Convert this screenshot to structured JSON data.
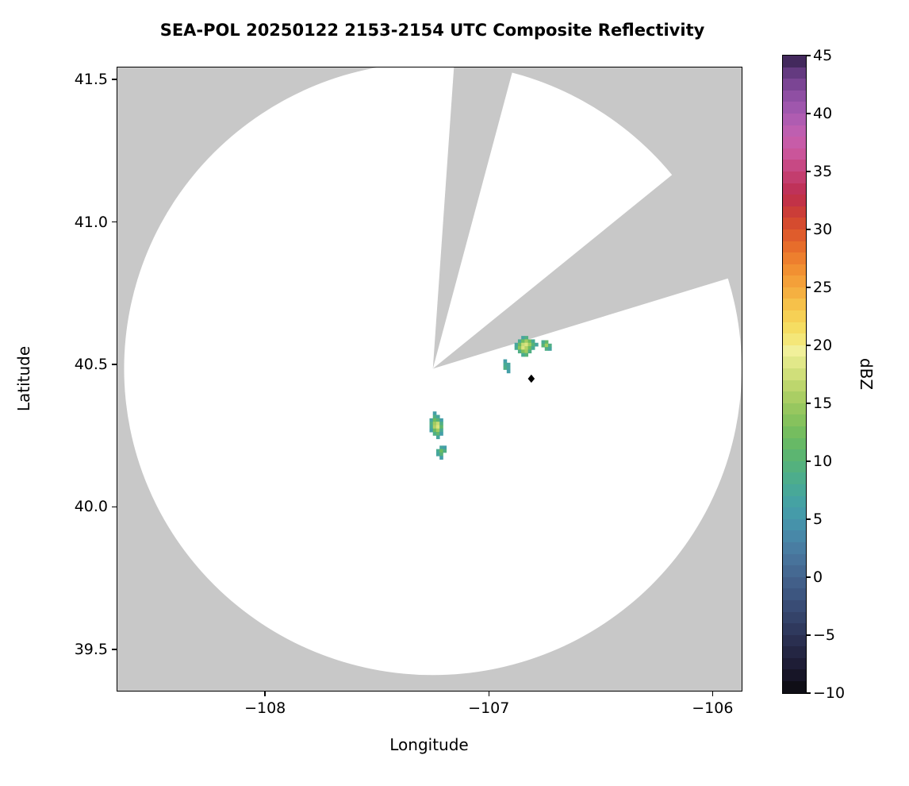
{
  "chart_data": {
    "type": "heatmap",
    "title": "SEA-POL 20250122 2153-2154 UTC Composite Reflectivity",
    "xlabel": "Longitude",
    "ylabel": "Latitude",
    "xlim": [
      -108.66,
      -105.87
    ],
    "ylim": [
      39.355,
      41.542
    ],
    "grid": false,
    "x_ticks": [
      -108,
      -107,
      -106
    ],
    "x_tick_labels": [
      "−108",
      "−107",
      "−106"
    ],
    "y_ticks": [
      41.5,
      41.0,
      40.5,
      40.0,
      39.5
    ],
    "y_tick_labels": [
      "41.5",
      "41.0",
      "40.5",
      "40.0",
      "39.5"
    ],
    "colors": {
      "outside_coverage": "#c8c8c8",
      "coverage": "#ffffff",
      "frame": "#000000",
      "figure_background": "#ffffff"
    },
    "radar": {
      "center_lon": -107.25,
      "center_lat": 40.485,
      "radius_lon_deg": 1.38,
      "radius_lat_deg": 1.075,
      "blocked_sectors_az_deg": [
        [
          4,
          15
        ],
        [
          51,
          73
        ]
      ]
    },
    "site_marker": {
      "lon": -106.81,
      "lat": 40.45,
      "shape": "diamond",
      "color": "#000000"
    },
    "colorbar": {
      "label": "dBZ",
      "min": -10,
      "max": 45,
      "step": 1,
      "ticks": [
        45,
        40,
        35,
        30,
        25,
        20,
        15,
        10,
        5,
        0,
        -5,
        -10
      ],
      "tick_labels": [
        "45",
        "40",
        "35",
        "30",
        "25",
        "20",
        "15",
        "10",
        "5",
        "0",
        "−5",
        "−10"
      ],
      "stops": [
        [
          -10,
          "#0b0b0d"
        ],
        [
          -8,
          "#1b1830"
        ],
        [
          -6,
          "#272a49"
        ],
        [
          -4,
          "#323e63"
        ],
        [
          -2,
          "#3b517b"
        ],
        [
          0,
          "#44648e"
        ],
        [
          2,
          "#49789f"
        ],
        [
          4,
          "#478dab"
        ],
        [
          6,
          "#449fa8"
        ],
        [
          8,
          "#49ab93"
        ],
        [
          10,
          "#57b377"
        ],
        [
          12,
          "#6cbb60"
        ],
        [
          14,
          "#8ec45c"
        ],
        [
          16,
          "#b3d167"
        ],
        [
          18,
          "#d9e480"
        ],
        [
          19.5,
          "#f1f09a"
        ],
        [
          21,
          "#f5e368"
        ],
        [
          23,
          "#f6c94f"
        ],
        [
          25,
          "#f5a83c"
        ],
        [
          27,
          "#f0882f"
        ],
        [
          29,
          "#e4642a"
        ],
        [
          31,
          "#d04230"
        ],
        [
          33,
          "#bd2c4e"
        ],
        [
          35,
          "#c54379"
        ],
        [
          36.5,
          "#ca559a"
        ],
        [
          38,
          "#c560af"
        ],
        [
          40,
          "#a75bb2"
        ],
        [
          42,
          "#874b9e"
        ],
        [
          43.5,
          "#643a80"
        ],
        [
          45,
          "#33204b"
        ]
      ]
    },
    "echo_clusters": [
      {
        "name": "northeast-main",
        "origin_lon": -106.885,
        "origin_lat": 40.6,
        "cell_lon": 0.015,
        "cell_lat": 0.012,
        "rows": [
          [
            null,
            null,
            7,
            9,
            null,
            null,
            null,
            null
          ],
          [
            null,
            8,
            12,
            15,
            12,
            8,
            null,
            null
          ],
          [
            7,
            12,
            17,
            18,
            15,
            10,
            7,
            null
          ],
          [
            8,
            14,
            18,
            16,
            12,
            8,
            null,
            null
          ],
          [
            null,
            9,
            13,
            15,
            9,
            null,
            null,
            null
          ],
          [
            null,
            null,
            8,
            10,
            null,
            null,
            null,
            null
          ]
        ]
      },
      {
        "name": "northeast-small",
        "origin_lon": -106.765,
        "origin_lat": 40.585,
        "cell_lon": 0.015,
        "cell_lat": 0.012,
        "rows": [
          [
            8,
            11,
            null
          ],
          [
            10,
            15,
            9
          ],
          [
            null,
            9,
            7
          ]
        ]
      },
      {
        "name": "center-streak",
        "origin_lon": -106.935,
        "origin_lat": 40.518,
        "cell_lon": 0.015,
        "cell_lat": 0.012,
        "rows": [
          [
            6,
            null
          ],
          [
            8,
            7
          ],
          [
            9,
            7
          ],
          [
            null,
            6
          ]
        ]
      },
      {
        "name": "southwest-main",
        "origin_lon": -107.265,
        "origin_lat": 40.335,
        "cell_lon": 0.015,
        "cell_lat": 0.012,
        "rows": [
          [
            null,
            6,
            null,
            null
          ],
          [
            null,
            9,
            7,
            null
          ],
          [
            7,
            12,
            10,
            6
          ],
          [
            9,
            15,
            17,
            9
          ],
          [
            8,
            16,
            18,
            11
          ],
          [
            6,
            12,
            15,
            8
          ],
          [
            null,
            9,
            11,
            6
          ],
          [
            null,
            null,
            7,
            null
          ]
        ]
      },
      {
        "name": "southwest-small",
        "origin_lon": -107.235,
        "origin_lat": 40.215,
        "cell_lon": 0.015,
        "cell_lat": 0.012,
        "rows": [
          [
            null,
            7,
            6
          ],
          [
            8,
            12,
            9
          ],
          [
            7,
            10,
            null
          ],
          [
            null,
            6,
            null
          ]
        ]
      }
    ]
  }
}
